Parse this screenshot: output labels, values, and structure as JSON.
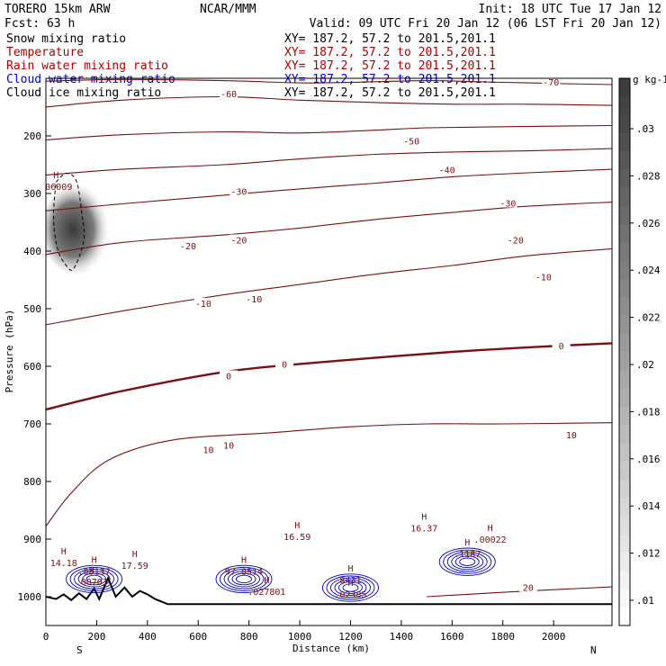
{
  "header": {
    "model": "TORERO  15km ARW",
    "forecast": "Fcst:    63 h",
    "center": "NCAR/MMM",
    "init": "Init: 18 UTC Tue 17 Jan 12",
    "valid": "Valid: 09 UTC Fri 20 Jan 12 (06 LST Fri 20 Jan 12)"
  },
  "legend": [
    {
      "name": "Snow mixing ratio",
      "xy": "XY= 187.2, 57.2 to 201.5,201.1",
      "color": "#000000"
    },
    {
      "name": "Temperature",
      "xy": "XY= 187.2, 57.2 to 201.5,201.1",
      "color": "#b00000"
    },
    {
      "name": "Rain water mixing ratio",
      "xy": "XY= 187.2, 57.2 to 201.5,201.1",
      "color": "#b00000"
    },
    {
      "name": "Cloud water mixing ratio",
      "xy": "XY= 187.2, 57.2 to 201.5,201.1",
      "color": "#0000c8"
    },
    {
      "name": "Cloud ice mixing ratio",
      "xy": "XY= 187.2, 57.2 to 201.5,201.1",
      "color": "#000000"
    }
  ],
  "chart_data": {
    "type": "contour cross-section",
    "xlabel": "Distance (km)",
    "ylabel": "Pressure (hPa)",
    "xlim": [
      0,
      2230
    ],
    "ylim": [
      1050,
      100
    ],
    "x_ticks": [
      0,
      200,
      400,
      600,
      800,
      1000,
      1200,
      1400,
      1600,
      1800,
      2000
    ],
    "y_ticks": [
      200,
      300,
      400,
      500,
      600,
      700,
      800,
      900,
      1000
    ],
    "x_end_labels": [
      "S",
      "N"
    ],
    "colorbar": {
      "unit": "g kg-1",
      "levels": [
        ".01",
        ".012",
        ".014",
        ".016",
        ".018",
        ".02",
        ".022",
        ".024",
        ".026",
        ".028",
        ".03"
      ]
    },
    "temperature_contours": [
      {
        "value": -70,
        "points": [
          [
            0,
            105
          ],
          [
            300,
            102
          ],
          [
            700,
            104
          ],
          [
            1000,
            108
          ],
          [
            1200,
            107
          ],
          [
            1500,
            104
          ],
          [
            1700,
            106
          ],
          [
            1900,
            108
          ],
          [
            2230,
            111
          ]
        ]
      },
      {
        "value": -60,
        "points": [
          [
            0,
            150
          ],
          [
            300,
            138
          ],
          [
            700,
            132
          ],
          [
            1000,
            138
          ],
          [
            1300,
            142
          ],
          [
            1600,
            145
          ],
          [
            1900,
            145
          ],
          [
            2230,
            147
          ]
        ]
      },
      {
        "value": -50,
        "points": [
          [
            0,
            207
          ],
          [
            300,
            198
          ],
          [
            700,
            193
          ],
          [
            1000,
            195
          ],
          [
            1300,
            190
          ],
          [
            1500,
            186
          ],
          [
            1800,
            184
          ],
          [
            2230,
            182
          ]
        ]
      },
      {
        "value": -40,
        "points": [
          [
            0,
            268
          ],
          [
            300,
            258
          ],
          [
            700,
            250
          ],
          [
            1000,
            240
          ],
          [
            1300,
            232
          ],
          [
            1600,
            228
          ],
          [
            1900,
            226
          ],
          [
            2230,
            222
          ]
        ]
      },
      {
        "value": -30,
        "points": [
          [
            0,
            330
          ],
          [
            300,
            318
          ],
          [
            700,
            303
          ],
          [
            1000,
            292
          ],
          [
            1300,
            282
          ],
          [
            1600,
            271
          ],
          [
            1900,
            264
          ],
          [
            2230,
            258
          ]
        ]
      },
      {
        "value": -20,
        "points": [
          [
            0,
            406
          ],
          [
            300,
            385
          ],
          [
            700,
            372
          ],
          [
            1000,
            360
          ],
          [
            1300,
            345
          ],
          [
            1600,
            333
          ],
          [
            1900,
            322
          ],
          [
            2230,
            315
          ]
        ]
      },
      {
        "value": -10,
        "points": [
          [
            0,
            528
          ],
          [
            300,
            504
          ],
          [
            700,
            476
          ],
          [
            1000,
            458
          ],
          [
            1300,
            440
          ],
          [
            1600,
            425
          ],
          [
            1900,
            408
          ],
          [
            2230,
            396
          ]
        ]
      },
      {
        "value": 0,
        "points": [
          [
            0,
            675
          ],
          [
            300,
            643
          ],
          [
            700,
            610
          ],
          [
            1000,
            596
          ],
          [
            1300,
            585
          ],
          [
            1600,
            575
          ],
          [
            1900,
            567
          ],
          [
            2230,
            560
          ]
        ]
      },
      {
        "value": 10,
        "points": [
          [
            0,
            878
          ],
          [
            100,
            820
          ],
          [
            250,
            762
          ],
          [
            500,
            728
          ],
          [
            900,
            715
          ],
          [
            1200,
            705
          ],
          [
            1500,
            700
          ],
          [
            1800,
            700
          ],
          [
            2230,
            698
          ]
        ]
      },
      {
        "value": 20,
        "points": [
          [
            1500,
            1000
          ],
          [
            1900,
            990
          ],
          [
            2230,
            983
          ]
        ]
      }
    ],
    "temperature_labels": [
      {
        "text": "-70",
        "x": 1990,
        "y": 108
      },
      {
        "text": "-60",
        "x": 720,
        "y": 128
      },
      {
        "text": "-50",
        "x": 1440,
        "y": 210
      },
      {
        "text": "-40",
        "x": 1580,
        "y": 260
      },
      {
        "text": "-30",
        "x": 760,
        "y": 298
      },
      {
        "text": "-30",
        "x": 1820,
        "y": 318
      },
      {
        "text": "-20",
        "x": 560,
        "y": 392
      },
      {
        "text": "-20",
        "x": 760,
        "y": 382
      },
      {
        "text": "-20",
        "x": 1850,
        "y": 382
      },
      {
        "text": "-10",
        "x": 620,
        "y": 492
      },
      {
        "text": "-10",
        "x": 820,
        "y": 484
      },
      {
        "text": "-10",
        "x": 1960,
        "y": 446
      },
      {
        "text": "0",
        "x": 720,
        "y": 618
      },
      {
        "text": "0",
        "x": 940,
        "y": 598
      },
      {
        "text": "0",
        "x": 2030,
        "y": 566
      },
      {
        "text": "10",
        "x": 640,
        "y": 746
      },
      {
        "text": "10",
        "x": 720,
        "y": 738
      },
      {
        "text": "10",
        "x": 2070,
        "y": 720
      },
      {
        "text": "20",
        "x": 1900,
        "y": 985
      }
    ],
    "cloud_ice_region": {
      "points": [
        [
          40,
          280
        ],
        [
          80,
          265
        ],
        [
          120,
          278
        ],
        [
          140,
          330
        ],
        [
          150,
          380
        ],
        [
          110,
          430
        ],
        [
          80,
          425
        ],
        [
          45,
          395
        ],
        [
          30,
          340
        ]
      ]
    },
    "extrema_labels": [
      {
        "marker": "H",
        "value": "006009",
        "x": 40,
        "y": 292,
        "color": "#000000"
      },
      {
        "marker": "H",
        "value": "14.18",
        "x": 70,
        "y": 945,
        "color": "#b00000"
      },
      {
        "marker": "H",
        "value": ".05137",
        "x": 190,
        "y": 960,
        "color": "#0000c8"
      },
      {
        "marker": "H",
        "value": ".00703",
        "x": 180,
        "y": 978,
        "color": "#b00000"
      },
      {
        "marker": "H",
        "value": "17.59",
        "x": 350,
        "y": 950,
        "color": "#b00000"
      },
      {
        "marker": "H",
        "value": "16.59",
        "x": 990,
        "y": 900,
        "color": "#b00000"
      },
      {
        "marker": "H",
        "value": "97.8514",
        "x": 780,
        "y": 960,
        "color": "#0000c8"
      },
      {
        "marker": "H",
        "value": ".027801",
        "x": 870,
        "y": 995,
        "color": "#b00000"
      },
      {
        "marker": "H",
        "value": "8431",
        "x": 1200,
        "y": 975,
        "color": "#0000c8"
      },
      {
        "marker": "H",
        "value": ".02385",
        "x": 1200,
        "y": 1000,
        "color": "#b00000"
      },
      {
        "marker": "H",
        "value": "16.37",
        "x": 1490,
        "y": 885,
        "color": "#b00000"
      },
      {
        "marker": "H",
        "value": ".1187",
        "x": 1660,
        "y": 930,
        "color": "#0000c8"
      },
      {
        "marker": "H",
        "value": ".00022",
        "x": 1750,
        "y": 905,
        "color": "#b00000"
      }
    ]
  }
}
